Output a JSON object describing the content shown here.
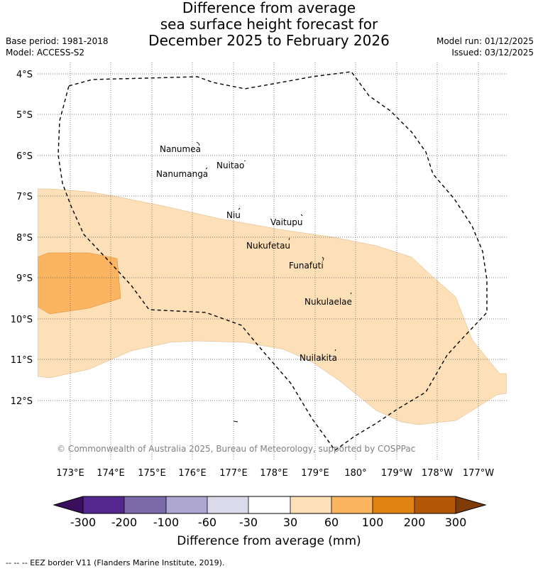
{
  "title": {
    "line1": "Difference from average",
    "line2": "sea surface height forecast for",
    "line3": "December 2025 to February 2026"
  },
  "meta_left": {
    "base_period": "Base period: 1981-2018",
    "model": "Model: ACCESS-S2"
  },
  "meta_right": {
    "model_run": "Model run: 01/12/2025",
    "issued": "Issued: 03/12/2025"
  },
  "map": {
    "lat_labels": [
      "4°S",
      "5°S",
      "6°S",
      "7°S",
      "8°S",
      "9°S",
      "10°S",
      "11°S",
      "12°S"
    ],
    "lon_labels": [
      "173°E",
      "174°E",
      "175°E",
      "176°E",
      "177°E",
      "178°E",
      "179°E",
      "180°",
      "179°W",
      "178°W",
      "177°W"
    ],
    "copyright": "© Commonwealth of Australia 2025, Bureau of Meteorology, supported by COSPPac",
    "islands": [
      {
        "name": "Nanumea"
      },
      {
        "name": "Nuitao"
      },
      {
        "name": "Nanumanga"
      },
      {
        "name": "Niu"
      },
      {
        "name": "Vaitupu"
      },
      {
        "name": "Nukufetau"
      },
      {
        "name": "Funafuti"
      },
      {
        "name": "Nukulaelae"
      },
      {
        "name": "Nuilakita"
      }
    ]
  },
  "legend": {
    "ticks": [
      "-300",
      "-200",
      "-100",
      "-60",
      "-30",
      "30",
      "60",
      "100",
      "200",
      "300"
    ],
    "colors": [
      "#54278f",
      "#7b6aa8",
      "#ada6d0",
      "#dadaeb",
      "#ffffff",
      "#fde0b7",
      "#fbb45f",
      "#e08214",
      "#b35806"
    ],
    "under_color": "#3c0e5e",
    "over_color": "#7f3b08",
    "label": "Difference from average (mm)"
  },
  "footer": "--  --  -- EEZ border V11 (Flanders Marine Institute, 2019)."
}
